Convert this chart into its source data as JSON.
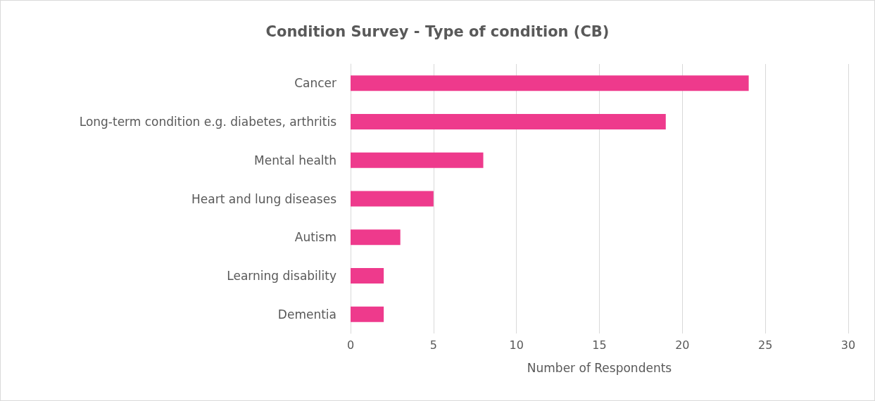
{
  "chart_data": {
    "type": "bar",
    "orientation": "horizontal",
    "title": "Condition Survey - Type of condition (CB)",
    "xlabel": "Number of Respondents",
    "categories": [
      "Cancer",
      "Long-term condition e.g. diabetes, arthritis",
      "Mental health",
      "Heart and lung diseases",
      "Autism",
      "Learning disability",
      "Dementia"
    ],
    "values": [
      24,
      19,
      8,
      5,
      3,
      2,
      2
    ],
    "color": "#ee3a8c",
    "xlim": [
      0,
      30
    ],
    "xticks": [
      0,
      5,
      10,
      15,
      20,
      25,
      30
    ],
    "grid": "x"
  }
}
